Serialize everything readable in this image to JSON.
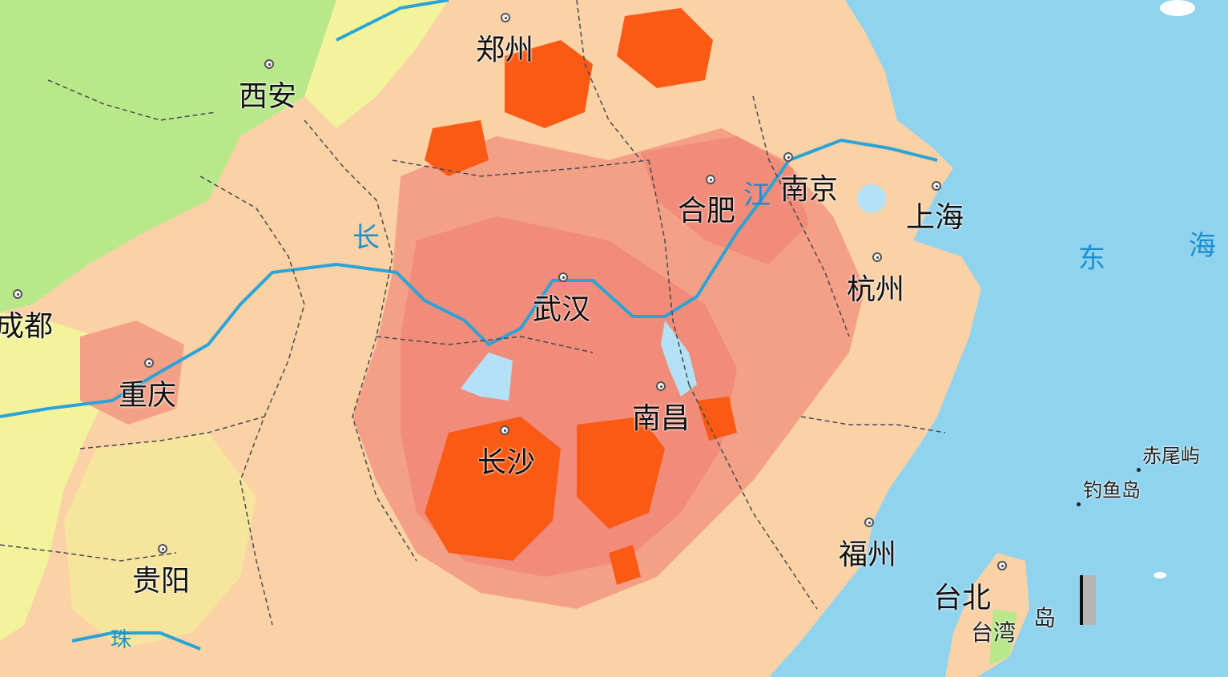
{
  "map": {
    "colors": {
      "sea": "#8fd3ef",
      "low": "#fbd1a6",
      "mid": "#f4a087",
      "high": "#f18b7a",
      "peak": "#fb5a15",
      "green": "#9fe07b",
      "yellow": "#f2f39b",
      "river": "#2aa4d6",
      "boundary": "#4a4a4a"
    },
    "cities": [
      {
        "key": "zhengzhou",
        "label": "郑州"
      },
      {
        "key": "xian",
        "label": "西安"
      },
      {
        "key": "chengdu",
        "label": "成都"
      },
      {
        "key": "chongqing",
        "label": "重庆"
      },
      {
        "key": "wuhan",
        "label": "武汉"
      },
      {
        "key": "hefei",
        "label": "合肥"
      },
      {
        "key": "nanjing",
        "label": "南京"
      },
      {
        "key": "shanghai",
        "label": "上海"
      },
      {
        "key": "hangzhou",
        "label": "杭州"
      },
      {
        "key": "nanchang",
        "label": "南昌"
      },
      {
        "key": "changsha",
        "label": "长沙"
      },
      {
        "key": "guiyang",
        "label": "贵阳"
      },
      {
        "key": "fuzhou",
        "label": "福州"
      },
      {
        "key": "taipei",
        "label": "台北"
      }
    ],
    "water_labels": {
      "chang": "长",
      "jiang": "江",
      "dong": "东",
      "hai": "海",
      "zhu": "珠"
    },
    "islands": {
      "chiwei": "赤尾屿",
      "diaoyu": "钓鱼岛",
      "taiwan_a": "台湾",
      "taiwan_b": "岛"
    }
  }
}
